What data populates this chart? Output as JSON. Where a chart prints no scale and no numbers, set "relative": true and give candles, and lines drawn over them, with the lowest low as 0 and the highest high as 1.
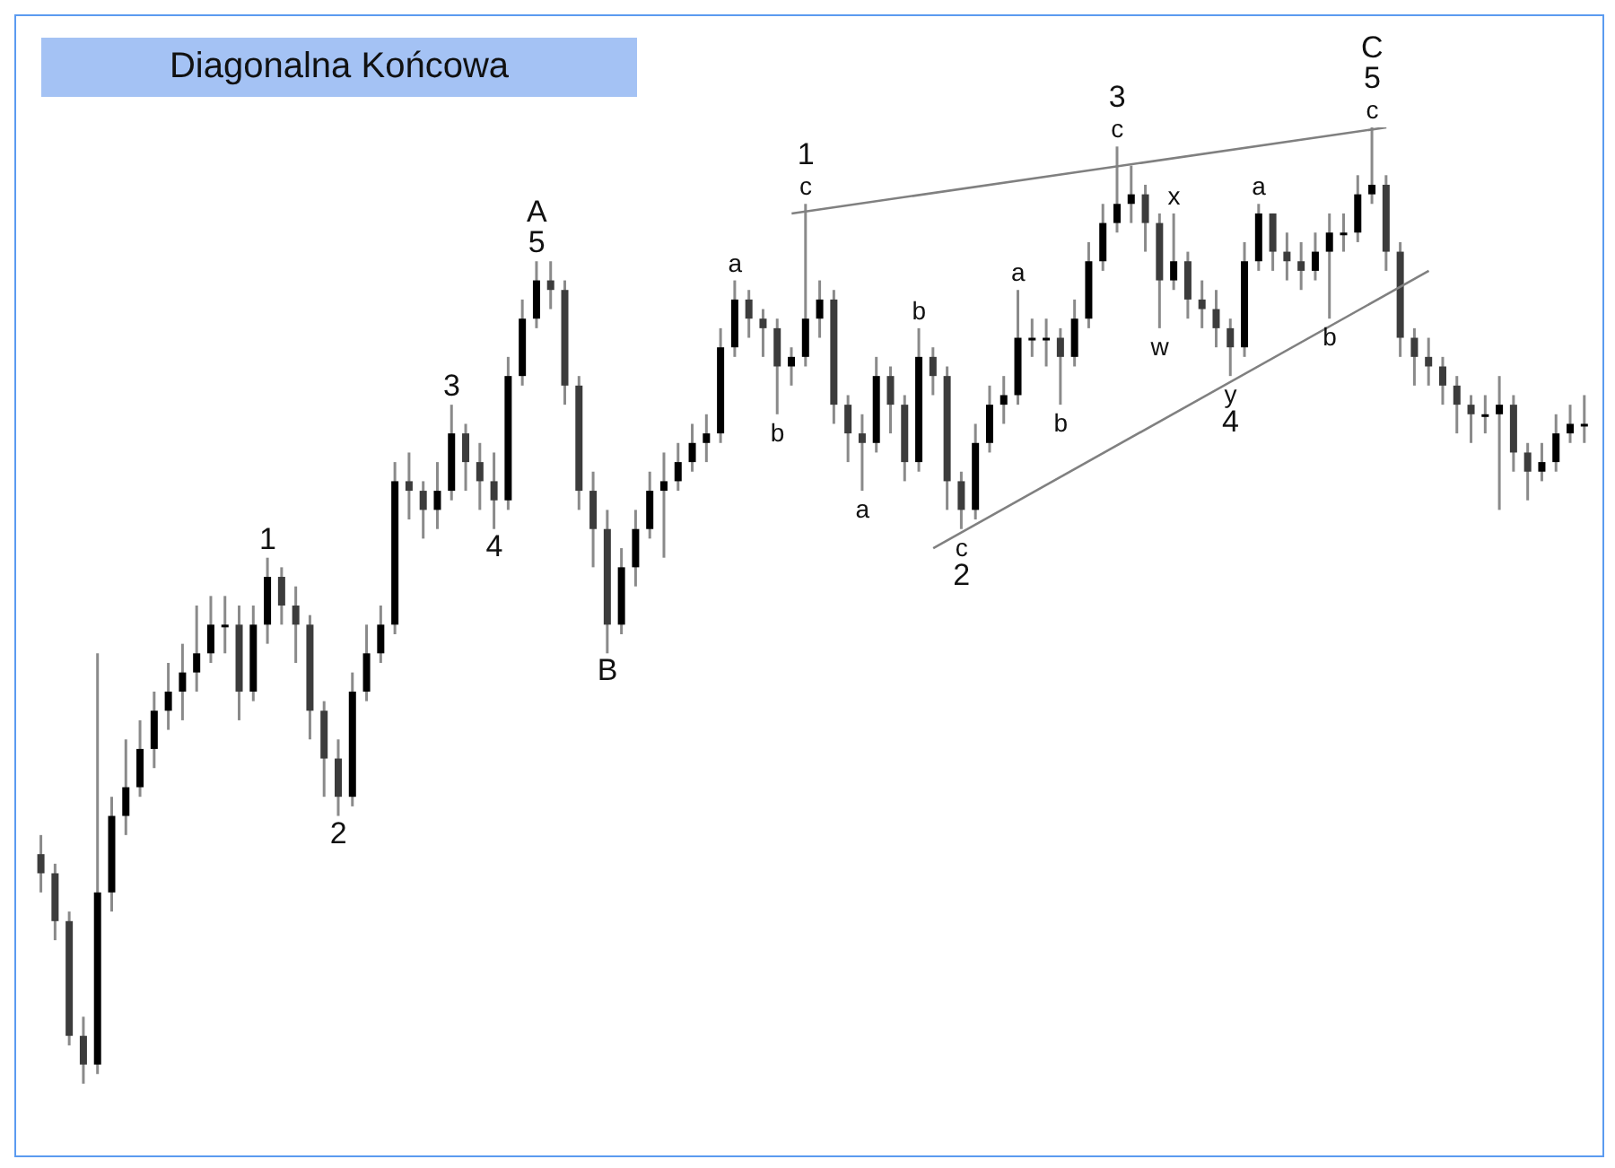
{
  "chart_data": {
    "type": "candlestick",
    "title": "Diagonalna Końcowa",
    "relative": true,
    "grid": false,
    "tick_labels": false,
    "colors": [
      "#3c3c3c",
      "#3c3c3c",
      "#3c3c3c",
      "#3c3c3c",
      "#000000",
      "#000000",
      "#000000",
      "#000000",
      "#000000",
      "#000000",
      "#000000",
      "#000000",
      "#000000",
      "#000000",
      "#3c3c3c",
      "#000000",
      "#000000",
      "#3c3c3c",
      "#3c3c3c",
      "#3c3c3c",
      "#3c3c3c",
      "#3c3c3c",
      "#000000",
      "#000000",
      "#000000",
      "#000000",
      "#3c3c3c",
      "#3c3c3c",
      "#000000",
      "#000000",
      "#3c3c3c",
      "#3c3c3c",
      "#3c3c3c",
      "#000000",
      "#000000",
      "#000000",
      "#3c3c3c",
      "#3c3c3c",
      "#3c3c3c",
      "#3c3c3c",
      "#3c3c3c",
      "#000000",
      "#000000",
      "#000000",
      "#000000",
      "#000000",
      "#000000",
      "#000000",
      "#000000",
      "#000000",
      "#3c3c3c",
      "#3c3c3c",
      "#3c3c3c",
      "#000000",
      "#000000",
      "#000000",
      "#3c3c3c",
      "#3c3c3c",
      "#3c3c3c",
      "#000000",
      "#3c3c3c",
      "#3c3c3c",
      "#000000",
      "#3c3c3c",
      "#3c3c3c",
      "#3c3c3c",
      "#000000",
      "#000000",
      "#000000",
      "#000000",
      "#000000",
      "#000000",
      "#3c3c3c",
      "#000000",
      "#000000",
      "#000000",
      "#000000",
      "#000000",
      "#3c3c3c",
      "#3c3c3c",
      "#000000",
      "#3c3c3c",
      "#3c3c3c",
      "#3c3c3c",
      "#3c3c3c",
      "#000000",
      "#000000",
      "#3c3c3c",
      "#3c3c3c",
      "#3c3c3c",
      "#000000",
      "#000000",
      "#000000",
      "#000000",
      "#000000",
      "#3c3c3c",
      "#3c3c3c",
      "#3c3c3c",
      "#3c3c3c",
      "#3c3c3c",
      "#3c3c3c",
      "#3c3c3c",
      "#000000",
      "#000000",
      "#3c3c3c",
      "#3c3c3c",
      "#000000",
      "#000000",
      "#000000",
      "#000000"
    ],
    "categories": [
      null,
      null,
      null,
      null,
      null,
      null,
      null,
      null,
      null,
      null,
      null,
      null,
      null,
      null,
      null,
      null,
      null,
      null,
      null,
      null,
      null,
      null,
      null,
      null,
      null,
      null,
      null,
      null,
      null,
      null,
      null,
      null,
      null,
      null,
      null,
      null,
      null,
      null,
      null,
      null,
      null,
      null,
      null,
      null,
      null,
      null,
      null,
      null,
      null,
      null,
      null,
      null,
      null,
      null,
      null,
      null,
      null,
      null,
      null,
      null,
      null,
      null,
      null,
      null,
      null,
      null,
      null,
      null,
      null,
      null,
      null,
      null,
      null,
      null,
      null,
      null,
      null,
      null,
      null,
      null,
      null,
      null,
      null,
      null,
      null,
      null,
      null,
      null,
      null,
      null,
      null,
      null,
      null,
      null,
      null,
      null,
      null,
      null,
      null,
      null,
      null,
      null,
      null,
      null,
      null,
      null,
      null,
      null,
      null,
      null
    ],
    "ohlc": [
      [
        0.24,
        0.26,
        0.2,
        0.22
      ],
      [
        0.22,
        0.23,
        0.15,
        0.17
      ],
      [
        0.17,
        0.18,
        0.04,
        0.05
      ],
      [
        0.05,
        0.07,
        0,
        0.02
      ],
      [
        0.02,
        0.45,
        0.01,
        0.2
      ],
      [
        0.2,
        0.3,
        0.18,
        0.28
      ],
      [
        0.28,
        0.36,
        0.26,
        0.31
      ],
      [
        0.31,
        0.38,
        0.3,
        0.35
      ],
      [
        0.35,
        0.41,
        0.33,
        0.39
      ],
      [
        0.39,
        0.44,
        0.37,
        0.41
      ],
      [
        0.41,
        0.46,
        0.38,
        0.43
      ],
      [
        0.43,
        0.5,
        0.41,
        0.45
      ],
      [
        0.45,
        0.51,
        0.44,
        0.48
      ],
      [
        0.48,
        0.51,
        0.45,
        0.48
      ],
      [
        0.48,
        0.5,
        0.38,
        0.41
      ],
      [
        0.41,
        0.5,
        0.4,
        0.48
      ],
      [
        0.48,
        0.55,
        0.46,
        0.53
      ],
      [
        0.53,
        0.54,
        0.48,
        0.5
      ],
      [
        0.5,
        0.52,
        0.44,
        0.48
      ],
      [
        0.48,
        0.49,
        0.36,
        0.39
      ],
      [
        0.39,
        0.4,
        0.3,
        0.34
      ],
      [
        0.34,
        0.36,
        0.28,
        0.3
      ],
      [
        0.3,
        0.43,
        0.29,
        0.41
      ],
      [
        0.41,
        0.48,
        0.4,
        0.45
      ],
      [
        0.45,
        0.5,
        0.44,
        0.48
      ],
      [
        0.48,
        0.65,
        0.47,
        0.63
      ],
      [
        0.63,
        0.66,
        0.59,
        0.62
      ],
      [
        0.62,
        0.63,
        0.57,
        0.6
      ],
      [
        0.6,
        0.65,
        0.58,
        0.62
      ],
      [
        0.62,
        0.71,
        0.61,
        0.68
      ],
      [
        0.68,
        0.69,
        0.62,
        0.65
      ],
      [
        0.65,
        0.67,
        0.6,
        0.63
      ],
      [
        0.63,
        0.66,
        0.58,
        0.61
      ],
      [
        0.61,
        0.76,
        0.6,
        0.74
      ],
      [
        0.74,
        0.82,
        0.73,
        0.8
      ],
      [
        0.8,
        0.86,
        0.79,
        0.84
      ],
      [
        0.84,
        0.86,
        0.81,
        0.83
      ],
      [
        0.83,
        0.84,
        0.71,
        0.73
      ],
      [
        0.73,
        0.74,
        0.6,
        0.62
      ],
      [
        0.62,
        0.64,
        0.54,
        0.58
      ],
      [
        0.58,
        0.6,
        0.45,
        0.48
      ],
      [
        0.48,
        0.56,
        0.47,
        0.54
      ],
      [
        0.54,
        0.6,
        0.52,
        0.58
      ],
      [
        0.58,
        0.64,
        0.57,
        0.62
      ],
      [
        0.62,
        0.66,
        0.55,
        0.63
      ],
      [
        0.63,
        0.67,
        0.62,
        0.65
      ],
      [
        0.65,
        0.69,
        0.64,
        0.67
      ],
      [
        0.67,
        0.7,
        0.65,
        0.68
      ],
      [
        0.68,
        0.79,
        0.67,
        0.77
      ],
      [
        0.77,
        0.84,
        0.76,
        0.82
      ],
      [
        0.82,
        0.83,
        0.78,
        0.8
      ],
      [
        0.8,
        0.81,
        0.76,
        0.79
      ],
      [
        0.79,
        0.8,
        0.7,
        0.75
      ],
      [
        0.75,
        0.77,
        0.73,
        0.76
      ],
      [
        0.76,
        0.92,
        0.75,
        0.8
      ],
      [
        0.8,
        0.84,
        0.78,
        0.82
      ],
      [
        0.82,
        0.83,
        0.69,
        0.71
      ],
      [
        0.71,
        0.72,
        0.65,
        0.68
      ],
      [
        0.68,
        0.7,
        0.62,
        0.67
      ],
      [
        0.67,
        0.76,
        0.66,
        0.74
      ],
      [
        0.74,
        0.75,
        0.68,
        0.71
      ],
      [
        0.71,
        0.72,
        0.63,
        0.65
      ],
      [
        0.65,
        0.79,
        0.64,
        0.76
      ],
      [
        0.76,
        0.77,
        0.72,
        0.74
      ],
      [
        0.74,
        0.75,
        0.6,
        0.63
      ],
      [
        0.63,
        0.64,
        0.58,
        0.6
      ],
      [
        0.6,
        0.69,
        0.59,
        0.67
      ],
      [
        0.67,
        0.73,
        0.66,
        0.71
      ],
      [
        0.71,
        0.74,
        0.69,
        0.72
      ],
      [
        0.72,
        0.83,
        0.71,
        0.78
      ],
      [
        0.78,
        0.8,
        0.76,
        0.78
      ],
      [
        0.78,
        0.8,
        0.75,
        0.78
      ],
      [
        0.78,
        0.79,
        0.71,
        0.76
      ],
      [
        0.76,
        0.82,
        0.75,
        0.8
      ],
      [
        0.8,
        0.88,
        0.79,
        0.86
      ],
      [
        0.86,
        0.92,
        0.85,
        0.9
      ],
      [
        0.9,
        0.98,
        0.89,
        0.92
      ],
      [
        0.92,
        0.96,
        0.9,
        0.93
      ],
      [
        0.93,
        0.94,
        0.87,
        0.9
      ],
      [
        0.9,
        0.91,
        0.79,
        0.84
      ],
      [
        0.84,
        0.91,
        0.83,
        0.86
      ],
      [
        0.86,
        0.87,
        0.8,
        0.82
      ],
      [
        0.82,
        0.84,
        0.79,
        0.81
      ],
      [
        0.81,
        0.83,
        0.77,
        0.79
      ],
      [
        0.79,
        0.8,
        0.74,
        0.77
      ],
      [
        0.77,
        0.88,
        0.76,
        0.86
      ],
      [
        0.86,
        0.92,
        0.85,
        0.91
      ],
      [
        0.91,
        0.91,
        0.85,
        0.87
      ],
      [
        0.87,
        0.89,
        0.84,
        0.86
      ],
      [
        0.86,
        0.88,
        0.83,
        0.85
      ],
      [
        0.85,
        0.89,
        0.84,
        0.87
      ],
      [
        0.87,
        0.91,
        0.8,
        0.89
      ],
      [
        0.89,
        0.91,
        0.87,
        0.89
      ],
      [
        0.89,
        0.95,
        0.88,
        0.93
      ],
      [
        0.93,
        1,
        0.92,
        0.94
      ],
      [
        0.94,
        0.95,
        0.85,
        0.87
      ],
      [
        0.87,
        0.88,
        0.76,
        0.78
      ],
      [
        0.78,
        0.79,
        0.73,
        0.76
      ],
      [
        0.76,
        0.78,
        0.73,
        0.75
      ],
      [
        0.75,
        0.76,
        0.71,
        0.73
      ],
      [
        0.73,
        0.74,
        0.68,
        0.71
      ],
      [
        0.71,
        0.72,
        0.67,
        0.7
      ],
      [
        0.7,
        0.72,
        0.68,
        0.7
      ],
      [
        0.7,
        0.74,
        0.6,
        0.71
      ],
      [
        0.71,
        0.72,
        0.64,
        0.66
      ],
      [
        0.66,
        0.67,
        0.61,
        0.64
      ],
      [
        0.64,
        0.67,
        0.63,
        0.65
      ],
      [
        0.65,
        0.7,
        0.64,
        0.68
      ],
      [
        0.68,
        0.71,
        0.67,
        0.69
      ],
      [
        0.69,
        0.72,
        0.67,
        0.69
      ]
    ],
    "series": [
      {
        "type": "line",
        "color": "#808080",
        "values": [
          null,
          null,
          null,
          null,
          null,
          null,
          null,
          null,
          null,
          null,
          null,
          null,
          null,
          null,
          null,
          null,
          null,
          null,
          null,
          null,
          null,
          null,
          null,
          null,
          null,
          null,
          null,
          null,
          null,
          null,
          null,
          null,
          null,
          null,
          null,
          null,
          null,
          null,
          null,
          null,
          null,
          null,
          null,
          null,
          null,
          null,
          null,
          null,
          null,
          null,
          null,
          null,
          null,
          0.91,
          null,
          null,
          null,
          null,
          null,
          null,
          null,
          null,
          null,
          null,
          null,
          null,
          null,
          null,
          null,
          null,
          null,
          null,
          null,
          null,
          null,
          null,
          null,
          null,
          null,
          null,
          null,
          null,
          null,
          null,
          null,
          null,
          null,
          null,
          null,
          null,
          null,
          null,
          null,
          null,
          null,
          1,
          null,
          null,
          null,
          null,
          null,
          null,
          null,
          null,
          null,
          null,
          null,
          null,
          null,
          null
        ]
      },
      {
        "type": "line",
        "color": "#808080",
        "values": [
          null,
          null,
          null,
          null,
          null,
          null,
          null,
          null,
          null,
          null,
          null,
          null,
          null,
          null,
          null,
          null,
          null,
          null,
          null,
          null,
          null,
          null,
          null,
          null,
          null,
          null,
          null,
          null,
          null,
          null,
          null,
          null,
          null,
          null,
          null,
          null,
          null,
          null,
          null,
          null,
          null,
          null,
          null,
          null,
          null,
          null,
          null,
          null,
          null,
          null,
          null,
          null,
          null,
          null,
          null,
          null,
          null,
          null,
          null,
          null,
          null,
          null,
          null,
          0.56,
          null,
          null,
          null,
          null,
          null,
          null,
          null,
          null,
          null,
          null,
          null,
          null,
          null,
          null,
          null,
          null,
          null,
          null,
          null,
          null,
          null,
          null,
          null,
          null,
          null,
          null,
          null,
          null,
          null,
          null,
          null,
          null,
          null,
          null,
          0.85,
          null,
          null,
          null,
          null,
          null,
          null,
          null,
          null,
          null,
          null,
          null
        ]
      }
    ],
    "annotations": [
      "1",
      "2",
      "3",
      "4",
      "5",
      "A",
      "B",
      "a",
      "b",
      "c",
      "1",
      "a",
      "b",
      "c",
      "2",
      "a",
      "b",
      "c",
      "3",
      "w",
      "x",
      "y",
      "4",
      "a",
      "b",
      "c",
      "5",
      "C"
    ]
  }
}
